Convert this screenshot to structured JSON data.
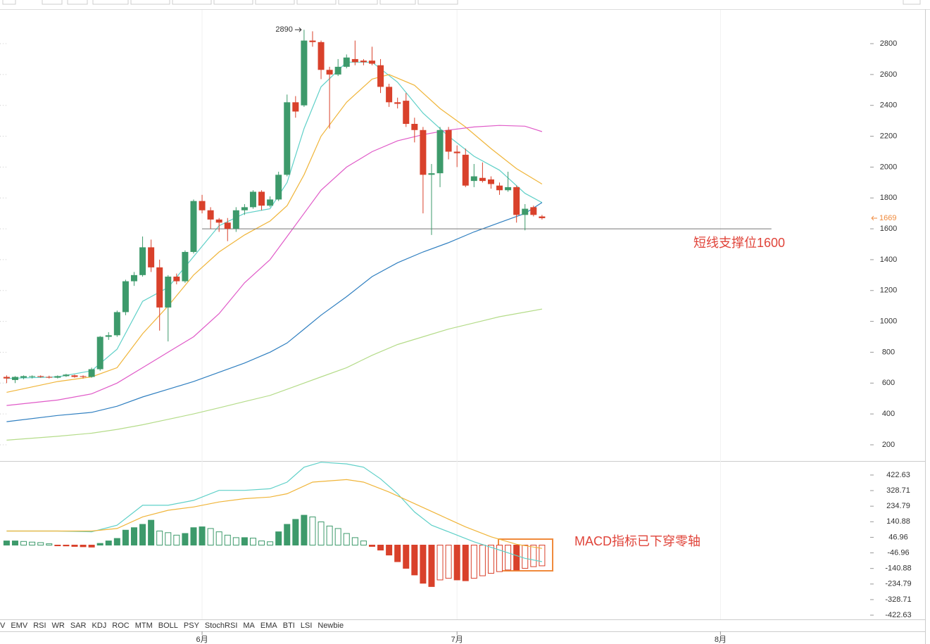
{
  "chart_data": [
    {
      "type": "candlestick",
      "x": [
        -23,
        -22,
        -21,
        -20,
        -19,
        -18,
        -17,
        -16,
        -15,
        -14,
        -13,
        -12,
        -11,
        -10,
        -9,
        -8,
        -7,
        -6,
        -5,
        -4,
        -3,
        -2,
        -1,
        0,
        1,
        2,
        3,
        4,
        5,
        6,
        7,
        8,
        9,
        10,
        11,
        12,
        13,
        14,
        15,
        16,
        17,
        18,
        19,
        20,
        21,
        22,
        23,
        24,
        25,
        26,
        27,
        28,
        29,
        30,
        31,
        32,
        33,
        34,
        35,
        36,
        37,
        38,
        39,
        40
      ],
      "open": [
        640,
        620,
        635,
        640,
        645,
        640,
        635,
        645,
        650,
        645,
        640,
        690,
        900,
        910,
        1060,
        1260,
        1300,
        1480,
        1350,
        1090,
        1290,
        1260,
        1450,
        1780,
        1720,
        1660,
        1640,
        1600,
        1720,
        1740,
        1840,
        1750,
        1790,
        1950,
        2420,
        2400,
        2820,
        2810,
        2630,
        2600,
        2650,
        2700,
        2690,
        2690,
        2660,
        2520,
        2420,
        2430,
        2280,
        2240,
        1950,
        1960,
        2240,
        2100,
        2080,
        1910,
        1930,
        1920,
        1880,
        1850,
        1870,
        1690,
        1740,
        1680
      ],
      "high": [
        650,
        645,
        650,
        650,
        650,
        648,
        650,
        660,
        655,
        650,
        700,
        905,
        930,
        1070,
        1270,
        1320,
        1550,
        1530,
        1400,
        1300,
        1310,
        1460,
        1790,
        1820,
        1740,
        1670,
        1670,
        1740,
        1760,
        1850,
        1850,
        1810,
        1970,
        2470,
        2460,
        2890,
        2880,
        2820,
        2650,
        2700,
        2730,
        2820,
        2700,
        2780,
        2700,
        2540,
        2450,
        2480,
        2320,
        2260,
        2020,
        2260,
        2260,
        2140,
        2120,
        2020,
        2030,
        1940,
        1900,
        1970,
        1880,
        1760,
        1750,
        1690
      ],
      "low": [
        600,
        600,
        625,
        630,
        635,
        630,
        630,
        640,
        635,
        630,
        635,
        680,
        880,
        900,
        1040,
        1230,
        1290,
        1320,
        940,
        870,
        1240,
        1250,
        1440,
        1700,
        1600,
        1580,
        1520,
        1580,
        1690,
        1730,
        1720,
        1740,
        1780,
        1940,
        2320,
        2390,
        2780,
        2570,
        2250,
        2590,
        2640,
        2660,
        2660,
        2660,
        2480,
        2390,
        2380,
        2260,
        2160,
        1700,
        1560,
        1870,
        2050,
        2000,
        1870,
        1870,
        1900,
        1860,
        1820,
        1840,
        1640,
        1590,
        1680,
        1660
      ],
      "close": [
        630,
        640,
        645,
        645,
        640,
        635,
        645,
        655,
        640,
        640,
        690,
        900,
        910,
        1060,
        1260,
        1300,
        1480,
        1350,
        1090,
        1290,
        1260,
        1450,
        1780,
        1720,
        1660,
        1640,
        1600,
        1720,
        1740,
        1840,
        1750,
        1790,
        1950,
        2420,
        2360,
        2820,
        2810,
        2630,
        2600,
        2650,
        2710,
        2680,
        2680,
        2670,
        2520,
        2420,
        2410,
        2280,
        2240,
        1950,
        1960,
        2240,
        2100,
        2090,
        1880,
        1940,
        1910,
        1890,
        1850,
        1870,
        1690,
        1730,
        1690,
        1669
      ],
      "up_color": "#3d9a6b",
      "down_color": "#d9412b",
      "series": [
        {
          "color": "#5fd0c8",
          "x": [
            -23,
            -17,
            -13,
            -10,
            -7,
            -4,
            -1,
            2,
            5,
            8,
            10,
            12,
            14,
            17,
            20,
            23,
            26,
            29,
            32,
            35,
            38,
            40
          ],
          "values": [
            630,
            640,
            680,
            820,
            1130,
            1220,
            1420,
            1620,
            1700,
            1730,
            1900,
            2250,
            2520,
            2680,
            2680,
            2550,
            2350,
            2200,
            2070,
            1980,
            1830,
            1770
          ]
        },
        {
          "color": "#f0b53a",
          "x": [
            -23,
            -17,
            -13,
            -10,
            -7,
            -4,
            -1,
            2,
            5,
            8,
            10,
            12,
            14,
            17,
            20,
            22,
            25,
            28,
            31,
            34,
            37,
            40
          ],
          "values": [
            540,
            610,
            640,
            700,
            920,
            1100,
            1300,
            1450,
            1560,
            1650,
            1750,
            1950,
            2200,
            2420,
            2570,
            2600,
            2530,
            2380,
            2260,
            2120,
            1990,
            1890
          ]
        },
        {
          "color": "#e05ac8",
          "x": [
            -23,
            -17,
            -13,
            -10,
            -7,
            -4,
            -1,
            2,
            5,
            8,
            10,
            12,
            14,
            17,
            20,
            23,
            26,
            29,
            32,
            35,
            38,
            40
          ],
          "values": [
            455,
            490,
            530,
            600,
            700,
            800,
            900,
            1050,
            1250,
            1400,
            1550,
            1700,
            1850,
            2000,
            2100,
            2170,
            2210,
            2240,
            2260,
            2270,
            2265,
            2230
          ]
        },
        {
          "color": "#2f7fc0",
          "x": [
            -23,
            -17,
            -13,
            -10,
            -7,
            -4,
            -1,
            2,
            5,
            8,
            10,
            12,
            14,
            17,
            20,
            23,
            26,
            29,
            32,
            35,
            38,
            40
          ],
          "values": [
            350,
            390,
            410,
            450,
            510,
            560,
            610,
            670,
            730,
            800,
            860,
            950,
            1040,
            1160,
            1290,
            1380,
            1450,
            1510,
            1580,
            1640,
            1700,
            1770
          ]
        },
        {
          "color": "#b5dc8a",
          "x": [
            -23,
            -17,
            -13,
            -10,
            -7,
            -4,
            -1,
            2,
            5,
            8,
            11,
            14,
            17,
            20,
            23,
            26,
            29,
            32,
            35,
            38,
            40
          ],
          "values": [
            230,
            255,
            275,
            300,
            330,
            365,
            400,
            440,
            480,
            520,
            580,
            640,
            700,
            780,
            850,
            900,
            950,
            990,
            1030,
            1060,
            1080
          ]
        }
      ],
      "xlim": [
        -23.78,
        78.2
      ],
      "xticks": [
        {
          "value": 0,
          "label": "6月"
        },
        {
          "value": 30,
          "label": "7月"
        },
        {
          "value": 61,
          "label": "8月"
        }
      ],
      "ylim": [
        95,
        3019
      ],
      "yticks": [
        200,
        400,
        600,
        800,
        1000,
        1200,
        1400,
        1600,
        1800,
        2000,
        2200,
        2400,
        2600,
        2800
      ],
      "peak_label": 2890,
      "last_price": 1669,
      "last_price_color": "#f08a3c",
      "support_line": {
        "value": 1600,
        "xrange": [
          0,
          67
        ],
        "label": "短线支撑位1600"
      }
    },
    {
      "type": "bar",
      "x": [
        -23,
        -22,
        -21,
        -20,
        -19,
        -18,
        -17,
        -16,
        -15,
        -14,
        -13,
        -12,
        -11,
        -10,
        -9,
        -8,
        -7,
        -6,
        -5,
        -4,
        -3,
        -2,
        -1,
        0,
        1,
        2,
        3,
        4,
        5,
        6,
        7,
        8,
        9,
        10,
        11,
        12,
        13,
        14,
        15,
        16,
        17,
        18,
        19,
        20,
        21,
        22,
        23,
        24,
        25,
        26,
        27,
        28,
        29,
        30,
        31,
        32,
        33,
        34,
        35,
        36,
        37,
        38,
        39,
        40
      ],
      "values": [
        25,
        25,
        22,
        18,
        15,
        8,
        -3,
        -5,
        -8,
        -10,
        -12,
        10,
        25,
        40,
        90,
        105,
        125,
        150,
        85,
        75,
        60,
        70,
        105,
        110,
        100,
        80,
        60,
        45,
        45,
        42,
        25,
        20,
        80,
        125,
        155,
        180,
        170,
        140,
        115,
        100,
        70,
        45,
        25,
        -8,
        -30,
        -60,
        -100,
        -140,
        -180,
        -230,
        -250,
        -210,
        -200,
        -210,
        -215,
        -200,
        -185,
        -170,
        -160,
        -150,
        -150,
        -140,
        -130,
        -125
      ],
      "up_color": "#3d9a6b",
      "down_color": "#d9412b",
      "series": [
        {
          "color": "#5fd0c8",
          "x": [
            -23,
            -17,
            -13,
            -10,
            -7,
            -4,
            -1,
            2,
            5,
            8,
            10,
            12,
            14,
            17,
            19,
            21,
            23,
            25,
            27,
            29,
            32,
            35,
            38,
            40
          ],
          "values": [
            85,
            85,
            80,
            120,
            240,
            240,
            270,
            330,
            330,
            340,
            380,
            470,
            500,
            490,
            470,
            400,
            310,
            200,
            120,
            80,
            20,
            -30,
            -80,
            -100
          ]
        },
        {
          "color": "#f0b53a",
          "x": [
            -23,
            -13,
            -10,
            -7,
            -4,
            -1,
            2,
            5,
            8,
            10,
            13,
            17,
            19,
            22,
            25,
            28,
            31,
            34,
            37,
            40
          ],
          "values": [
            85,
            85,
            100,
            170,
            210,
            230,
            260,
            280,
            290,
            310,
            380,
            395,
            380,
            320,
            250,
            180,
            110,
            50,
            5,
            -20
          ]
        }
      ],
      "ylim": [
        -465,
        503
      ],
      "yticks": [
        422.63,
        328.71,
        234.79,
        140.88,
        46.96,
        -46.96,
        -140.88,
        -234.79,
        -328.71,
        -422.63
      ],
      "annotation": "MACD指标已下穿零轴"
    }
  ],
  "indicator_tabs": [
    "V",
    "EMV",
    "RSI",
    "WR",
    "SAR",
    "KDJ",
    "ROC",
    "MTM",
    "BOLL",
    "PSY",
    "StochRSI",
    "MA",
    "EMA",
    "BTI",
    "LSI",
    "Newbie"
  ]
}
